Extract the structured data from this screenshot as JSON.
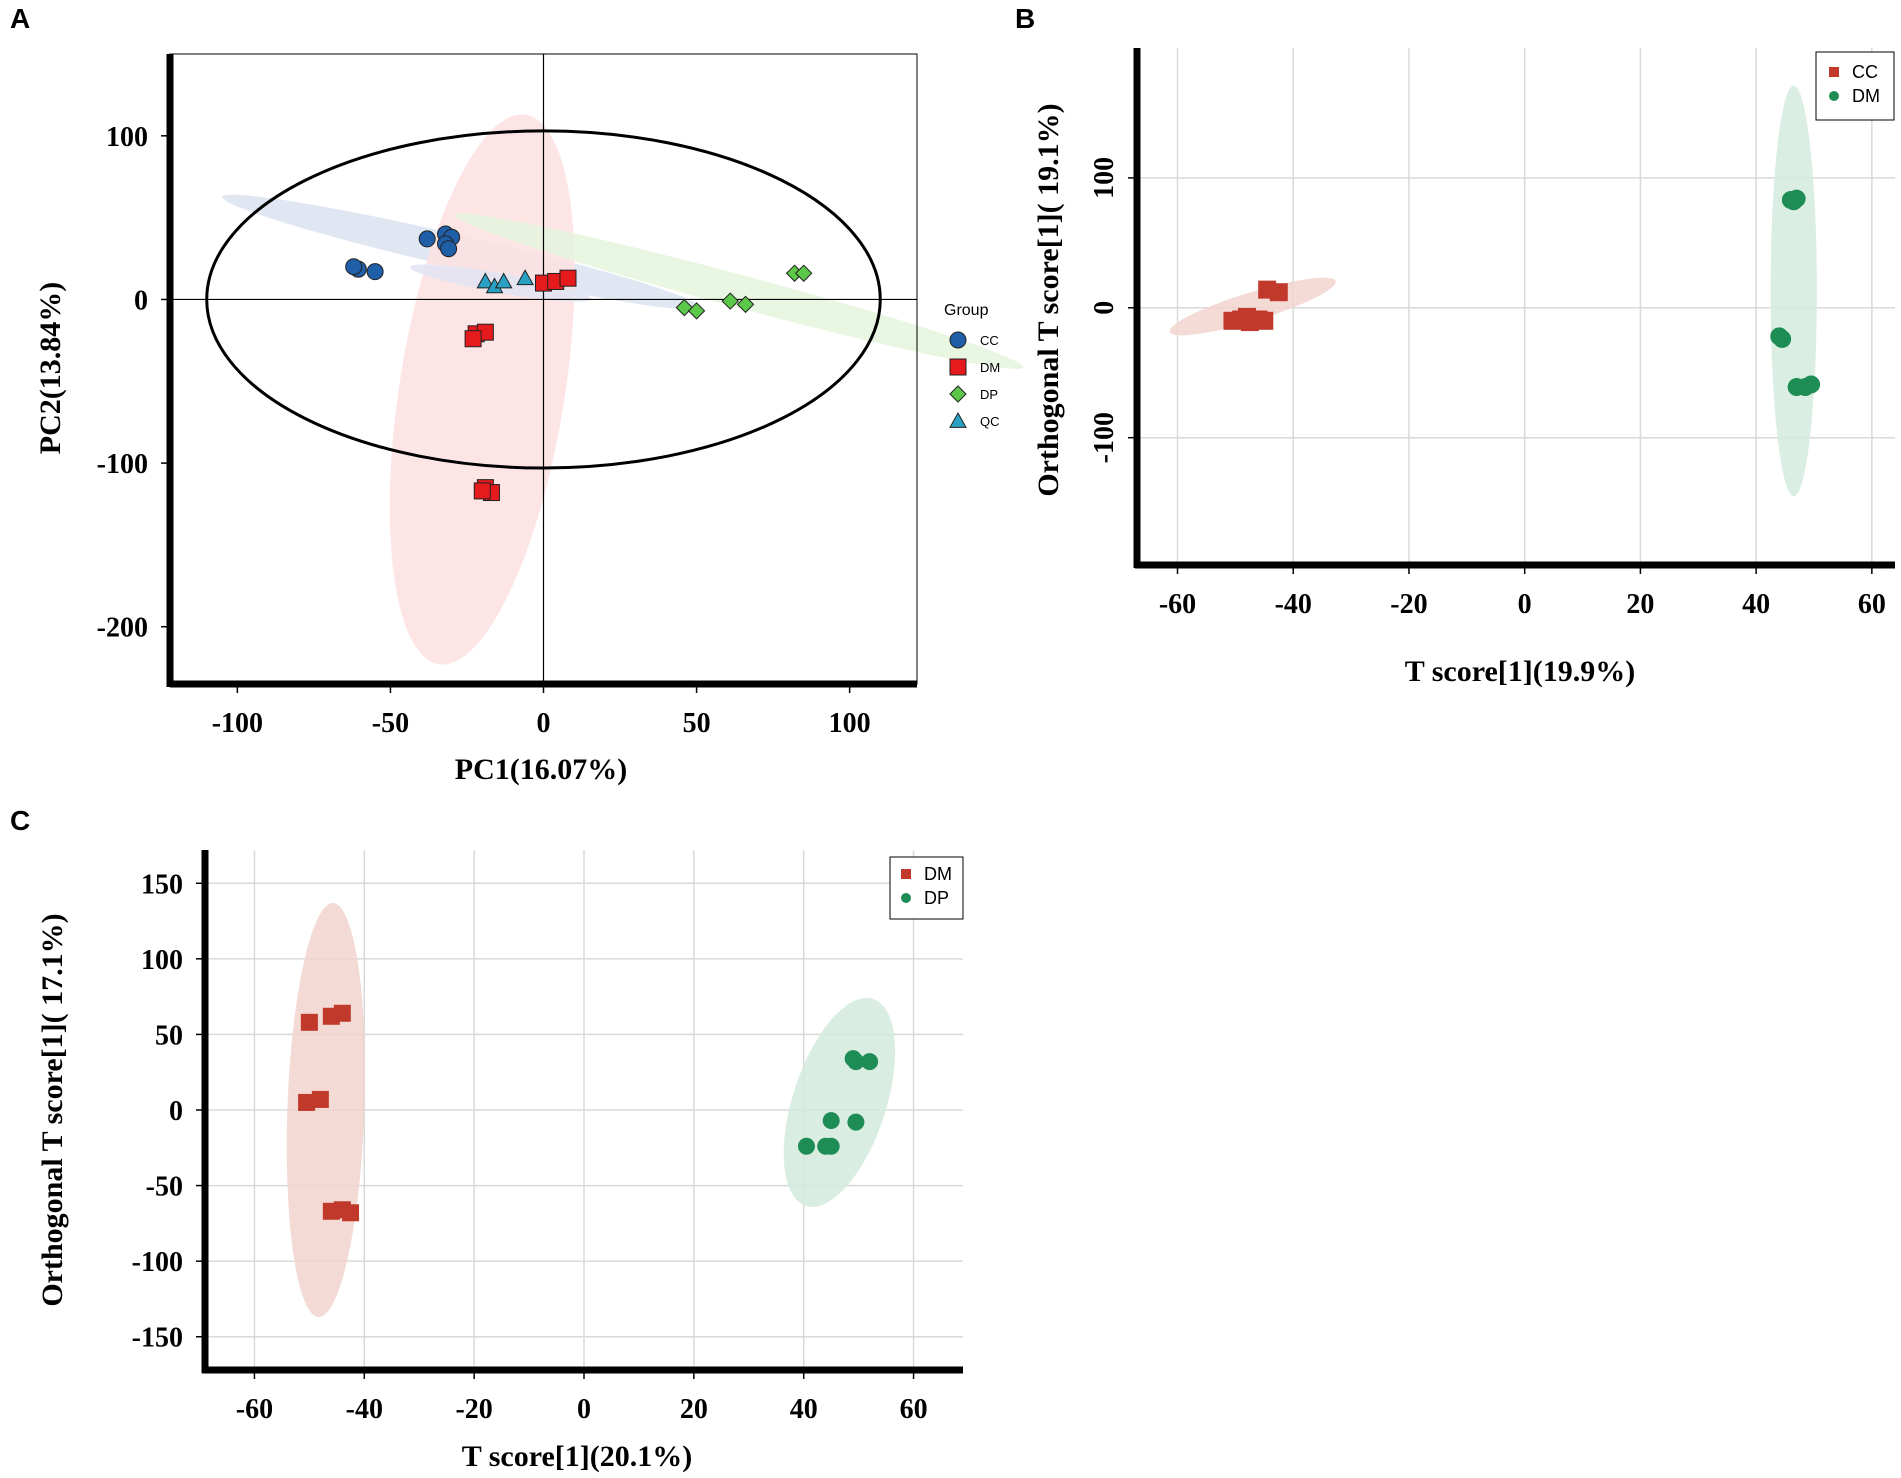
{
  "panels": {
    "a": {
      "letter": "A",
      "chart": {
        "type": "scatter",
        "title": "",
        "xlabel": "PC1(16.07%)",
        "ylabel": "PC2(13.84%)",
        "xlim": [
          -122,
          122
        ],
        "ylim": [
          -235,
          150
        ],
        "xticks": [
          -100,
          -50,
          0,
          50,
          100
        ],
        "yticks": [
          100,
          0,
          -100,
          -200
        ],
        "grid": false,
        "legend_title": "Group",
        "legend_position": "right",
        "hotelling_ellipse": {
          "rx": 110,
          "ry": 103
        },
        "series": [
          {
            "name": "CC",
            "color": "#1f5fa8",
            "marker": "circle",
            "points": [
              [
                -60.5,
                18.5
              ],
              [
                -62,
                20
              ],
              [
                -55,
                17
              ],
              [
                -38,
                37
              ],
              [
                -32,
                40
              ],
              [
                -30,
                38
              ],
              [
                -32,
                34
              ],
              [
                -31,
                31
              ]
            ],
            "ellipse": {
              "cx": -27,
              "cy": 29,
              "rx": 80,
              "ry": 10,
              "angle": 13,
              "fill": "#dbe3f1"
            }
          },
          {
            "name": "DM",
            "color": "#e41a1c",
            "marker": "square",
            "points": [
              [
                0,
                10
              ],
              [
                4,
                11
              ],
              [
                8,
                13
              ],
              [
                -22,
                -21
              ],
              [
                -19,
                -20
              ],
              [
                -23,
                -24
              ],
              [
                -19,
                -115
              ],
              [
                -17,
                -118
              ],
              [
                -20,
                -117
              ]
            ],
            "ellipse": {
              "cx": -20,
              "cy": -55,
              "rx": 27,
              "ry": 170,
              "angle": 9,
              "fill": "#fde0e0"
            }
          },
          {
            "name": "DP",
            "color": "#5cc84a",
            "marker": "diamond",
            "points": [
              [
                46,
                -5
              ],
              [
                50,
                -7
              ],
              [
                61,
                -1
              ],
              [
                66,
                -3
              ],
              [
                82,
                16
              ],
              [
                85,
                16
              ]
            ],
            "ellipse": {
              "cx": 64,
              "cy": 5,
              "rx": 96,
              "ry": 10,
              "angle": 15,
              "fill": "#e5f5dd"
            }
          },
          {
            "name": "QC",
            "color": "#2aa0c2",
            "marker": "triangle",
            "points": [
              [
                -19,
                11
              ],
              [
                -16,
                8
              ],
              [
                -13,
                11
              ],
              [
                -6,
                13
              ]
            ],
            "ellipse": {
              "cx": -14,
              "cy": 10,
              "rx": 30,
              "ry": 6,
              "angle": 10,
              "fill": "#e0e4f2"
            }
          }
        ]
      }
    },
    "b": {
      "letter": "B",
      "chart": {
        "type": "scatter",
        "title": "",
        "xlabel": "T score[1](19.9%)",
        "ylabel": "Orthogonal T score[1]( 19.1%)",
        "xlim": [
          -67,
          64
        ],
        "ylim": [
          -198,
          200
        ],
        "xticks": [
          -60,
          -40,
          -20,
          0,
          20,
          40,
          60
        ],
        "yticks": [
          100,
          0,
          -100
        ],
        "grid": true,
        "legend_position": "top-right",
        "series": [
          {
            "name": "CC",
            "color": "#c0392b",
            "marker": "square",
            "points": [
              [
                -44.5,
                14
              ],
              [
                -42.5,
                12
              ],
              [
                -50.5,
                -10
              ],
              [
                -49,
                -9
              ],
              [
                -48,
                -7
              ],
              [
                -47.5,
                -11
              ],
              [
                -46,
                -9
              ],
              [
                -45,
                -10
              ]
            ],
            "ellipse": {
              "cx": -47,
              "cy": 1,
              "rx": 15,
              "ry": 11,
              "angle": -17,
              "fill": "#f2d5cf"
            }
          },
          {
            "name": "DM",
            "color": "#1e8c55",
            "marker": "circle",
            "points": [
              [
                46,
                83
              ],
              [
                47,
                84
              ],
              [
                46.5,
                82
              ],
              [
                44.5,
                -24
              ],
              [
                44,
                -22
              ],
              [
                47,
                -61
              ],
              [
                48.5,
                -61
              ],
              [
                49.5,
                -59
              ]
            ],
            "ellipse": {
              "cx": 46.5,
              "cy": 13,
              "rx": 4,
              "ry": 158,
              "angle": 0,
              "fill": "#d5ebdf"
            }
          }
        ]
      }
    },
    "c": {
      "letter": "C",
      "chart": {
        "type": "scatter",
        "title": "",
        "xlabel": "T score[1](20.1%)",
        "ylabel": "Orthogonal T score[1]( 17.1%)",
        "xlim": [
          -69,
          69
        ],
        "ylim": [
          -172,
          172
        ],
        "xticks": [
          -60,
          -40,
          -20,
          0,
          20,
          40,
          60
        ],
        "yticks": [
          150,
          100,
          50,
          0,
          -50,
          -100,
          -150
        ],
        "grid": true,
        "legend_position": "top-right",
        "series": [
          {
            "name": "DM",
            "color": "#c0392b",
            "marker": "square",
            "points": [
              [
                -50,
                58
              ],
              [
                -46,
                62
              ],
              [
                -44,
                64
              ],
              [
                -50.5,
                5
              ],
              [
                -48,
                7
              ],
              [
                -46,
                -67
              ],
              [
                -44,
                -66
              ],
              [
                -42.5,
                -68
              ]
            ],
            "ellipse": {
              "cx": -47,
              "cy": 0,
              "rx": 7,
              "ry": 137,
              "angle": 2,
              "fill": "#f1d3cd"
            }
          },
          {
            "name": "DP",
            "color": "#1e8c55",
            "marker": "circle",
            "points": [
              [
                49,
                34
              ],
              [
                49.5,
                32
              ],
              [
                52,
                32
              ],
              [
                45,
                -7
              ],
              [
                49.5,
                -8
              ],
              [
                40.5,
                -24
              ],
              [
                44,
                -24
              ],
              [
                45,
                -24
              ]
            ],
            "ellipse": {
              "cx": 46.5,
              "cy": 5,
              "rx": 8.5,
              "ry": 72,
              "angle": 18,
              "fill": "#d4eadd"
            }
          }
        ]
      }
    }
  }
}
